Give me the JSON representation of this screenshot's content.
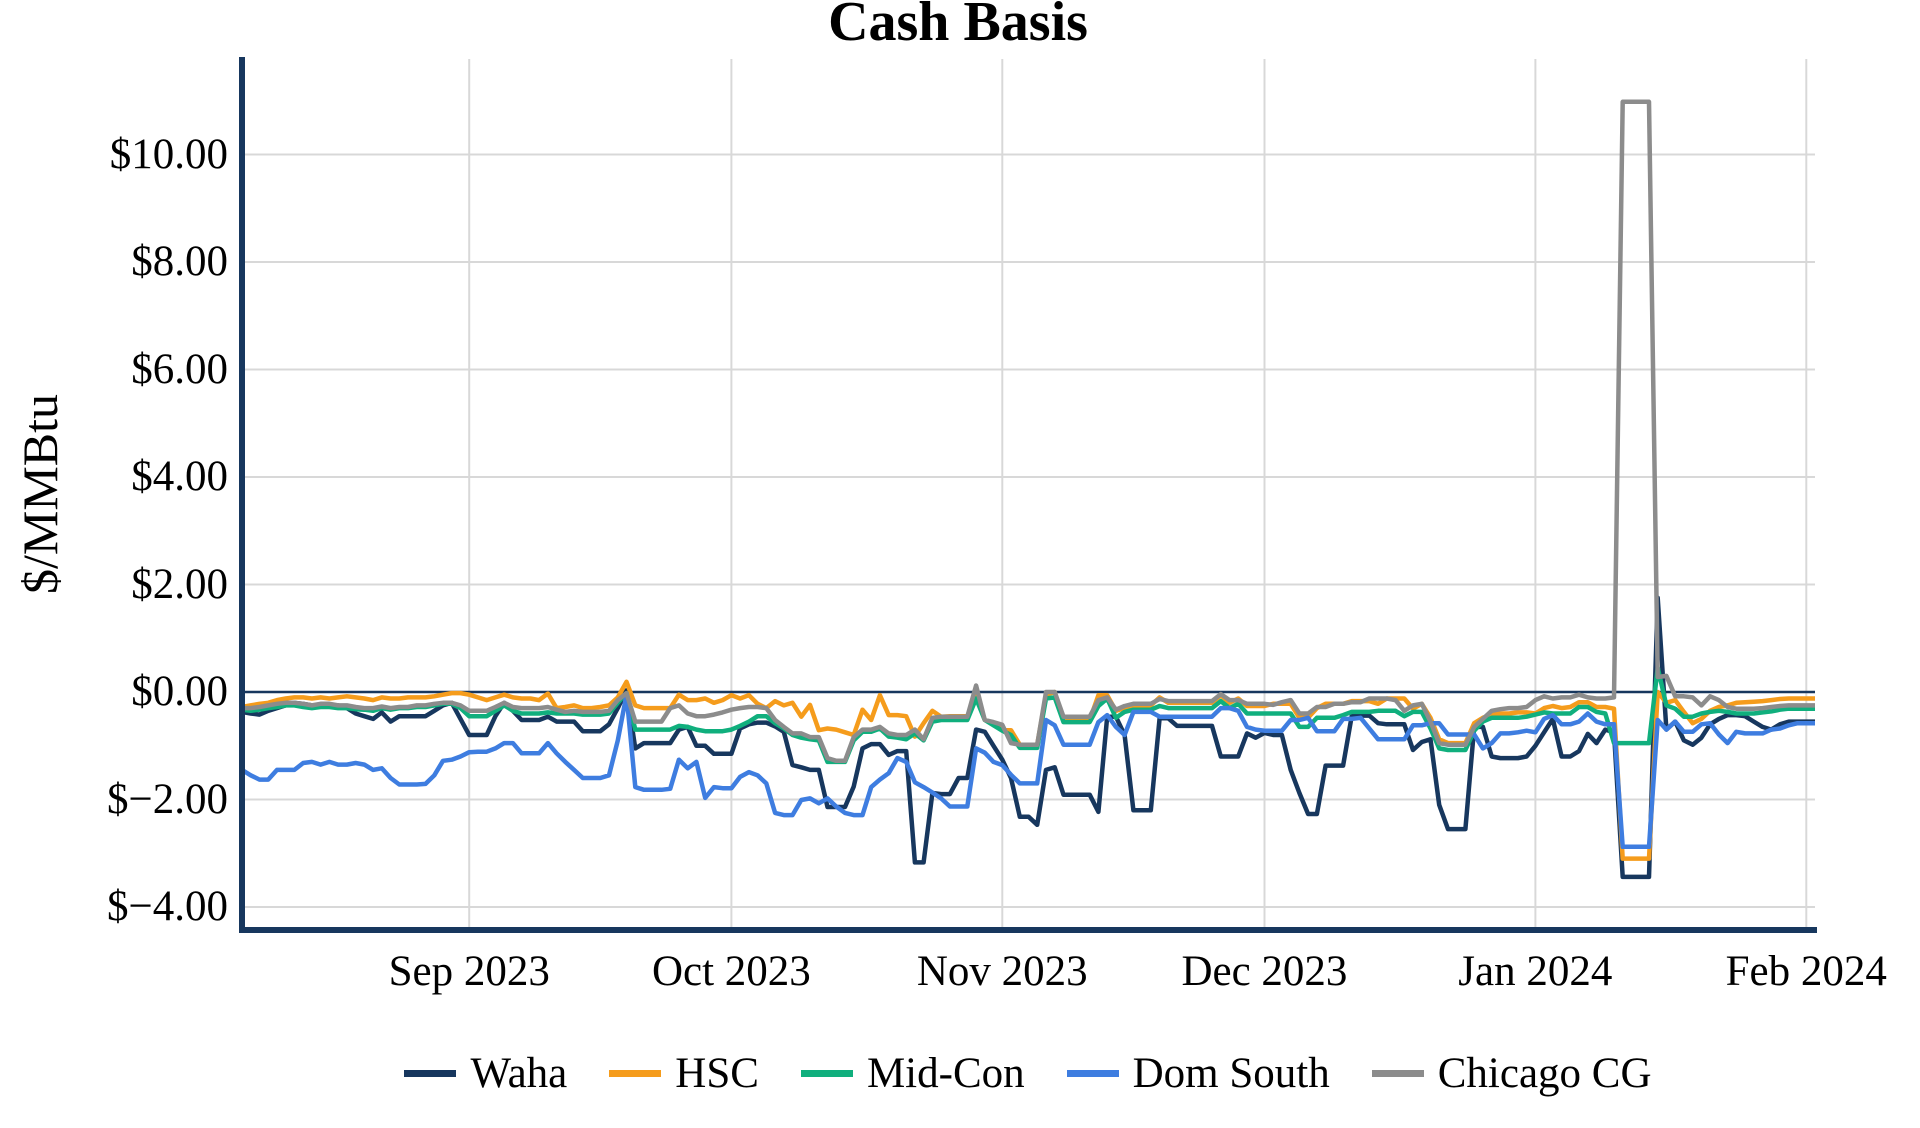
{
  "colors": {
    "background": "#FFFFFF",
    "axis_spine": "#17375E",
    "zero_line": "#17375E",
    "gridline": "#D8D8D8",
    "text": "#000000"
  },
  "chart_data": {
    "type": "line",
    "title": "Cash Basis",
    "ylabel": "$/MMBtu",
    "xlabel": "",
    "grid": true,
    "legend_position": "bottom",
    "ylim": [
      -4.43,
      11.78
    ],
    "start_date": "2023-08-06",
    "end_date": "2024-02-02",
    "points_per_series": 181,
    "y_ticks": [
      {
        "label": "$10.00",
        "value": 10
      },
      {
        "label": "$8.00",
        "value": 8
      },
      {
        "label": "$6.00",
        "value": 6
      },
      {
        "label": "$4.00",
        "value": 4
      },
      {
        "label": "$2.00",
        "value": 2
      },
      {
        "label": "$0.00",
        "value": 0
      },
      {
        "label": "$−2.00",
        "value": -2
      },
      {
        "label": "$−4.00",
        "value": -4
      }
    ],
    "x_ticks": [
      {
        "label": "Sep 2023",
        "day_index": 26
      },
      {
        "label": "Oct 2023",
        "day_index": 56
      },
      {
        "label": "Nov 2023",
        "day_index": 87
      },
      {
        "label": "Dec 2023",
        "day_index": 117
      },
      {
        "label": "Jan 2024",
        "day_index": 148
      },
      {
        "label": "Feb 2024",
        "day_index": 179
      }
    ],
    "series": [
      {
        "name": "Waha",
        "color": "#17375E",
        "values": [
          -0.37,
          -0.4,
          -0.42,
          -0.35,
          -0.3,
          -0.25,
          -0.2,
          -0.22,
          -0.25,
          -0.25,
          -0.25,
          -0.25,
          -0.3,
          -0.4,
          -0.45,
          -0.5,
          -0.38,
          -0.55,
          -0.45,
          -0.45,
          -0.45,
          -0.45,
          -0.35,
          -0.25,
          -0.2,
          -0.5,
          -0.8,
          -0.8,
          -0.8,
          -0.45,
          -0.2,
          -0.35,
          -0.52,
          -0.52,
          -0.52,
          -0.46,
          -0.55,
          -0.55,
          -0.55,
          -0.73,
          -0.73,
          -0.73,
          -0.6,
          -0.3,
          0.03,
          -1.05,
          -0.95,
          -0.95,
          -0.95,
          -0.95,
          -0.7,
          -0.65,
          -1.0,
          -1.0,
          -1.15,
          -1.15,
          -1.15,
          -0.68,
          -0.6,
          -0.57,
          -0.57,
          -0.64,
          -0.74,
          -1.36,
          -1.4,
          -1.45,
          -1.45,
          -2.14,
          -2.14,
          -2.14,
          -1.76,
          -1.05,
          -0.97,
          -0.97,
          -1.17,
          -1.1,
          -1.1,
          -3.17,
          -3.17,
          -1.88,
          -1.9,
          -1.9,
          -1.6,
          -1.6,
          -0.7,
          -0.74,
          -1.0,
          -1.26,
          -1.6,
          -2.32,
          -2.32,
          -2.47,
          -1.45,
          -1.4,
          -1.91,
          -1.91,
          -1.91,
          -1.91,
          -2.23,
          -0.46,
          -0.46,
          -0.8,
          -2.2,
          -2.2,
          -2.2,
          -0.49,
          -0.49,
          -0.63,
          -0.63,
          -0.63,
          -0.63,
          -0.63,
          -1.2,
          -1.2,
          -1.2,
          -0.77,
          -0.85,
          -0.76,
          -0.8,
          -0.8,
          -1.45,
          -1.88,
          -2.27,
          -2.27,
          -1.37,
          -1.37,
          -1.37,
          -0.44,
          -0.44,
          -0.44,
          -0.58,
          -0.6,
          -0.6,
          -0.6,
          -1.08,
          -0.93,
          -0.88,
          -2.1,
          -2.55,
          -2.55,
          -2.55,
          -0.65,
          -0.65,
          -1.2,
          -1.23,
          -1.23,
          -1.23,
          -1.2,
          -1.0,
          -0.75,
          -0.5,
          -1.2,
          -1.2,
          -1.1,
          -0.78,
          -0.95,
          -0.7,
          -0.75,
          -3.44,
          -3.44,
          -3.44,
          -3.44,
          1.75,
          -0.7,
          -0.55,
          -0.9,
          -0.98,
          -0.85,
          -0.6,
          -0.5,
          -0.43,
          -0.43,
          -0.45,
          -0.55,
          -0.65,
          -0.7,
          -0.6,
          -0.55,
          -0.55,
          -0.55,
          -0.55
        ]
      },
      {
        "name": "HSC",
        "color": "#F59C1C",
        "values": [
          -0.28,
          -0.25,
          -0.22,
          -0.2,
          -0.15,
          -0.12,
          -0.1,
          -0.1,
          -0.12,
          -0.1,
          -0.12,
          -0.1,
          -0.08,
          -0.1,
          -0.12,
          -0.15,
          -0.1,
          -0.12,
          -0.12,
          -0.1,
          -0.1,
          -0.1,
          -0.08,
          -0.05,
          -0.02,
          -0.02,
          -0.05,
          -0.1,
          -0.15,
          -0.1,
          -0.05,
          -0.1,
          -0.12,
          -0.12,
          -0.15,
          -0.03,
          -0.3,
          -0.28,
          -0.25,
          -0.3,
          -0.3,
          -0.28,
          -0.25,
          -0.1,
          0.19,
          -0.25,
          -0.3,
          -0.3,
          -0.3,
          -0.3,
          -0.05,
          -0.15,
          -0.15,
          -0.12,
          -0.2,
          -0.15,
          -0.06,
          -0.12,
          -0.06,
          -0.22,
          -0.3,
          -0.17,
          -0.25,
          -0.2,
          -0.46,
          -0.24,
          -0.71,
          -0.68,
          -0.7,
          -0.75,
          -0.8,
          -0.33,
          -0.52,
          -0.06,
          -0.43,
          -0.43,
          -0.45,
          -0.83,
          -0.58,
          -0.35,
          -0.46,
          -0.45,
          -0.45,
          -0.45,
          -0.08,
          -0.52,
          -0.58,
          -0.71,
          -0.71,
          -0.98,
          -0.98,
          -0.98,
          -0.05,
          0.0,
          -0.52,
          -0.52,
          -0.52,
          -0.52,
          -0.06,
          -0.06,
          -0.35,
          -0.3,
          -0.25,
          -0.25,
          -0.25,
          -0.1,
          -0.2,
          -0.2,
          -0.2,
          -0.2,
          -0.2,
          -0.2,
          -0.06,
          -0.2,
          -0.12,
          -0.26,
          -0.26,
          -0.26,
          -0.22,
          -0.22,
          -0.22,
          -0.48,
          -0.48,
          -0.3,
          -0.22,
          -0.22,
          -0.22,
          -0.17,
          -0.17,
          -0.17,
          -0.22,
          -0.12,
          -0.12,
          -0.12,
          -0.31,
          -0.22,
          -0.48,
          -0.88,
          -0.95,
          -0.95,
          -0.95,
          -0.58,
          -0.48,
          -0.42,
          -0.4,
          -0.4,
          -0.38,
          -0.38,
          -0.4,
          -0.3,
          -0.26,
          -0.3,
          -0.28,
          -0.19,
          -0.19,
          -0.28,
          -0.28,
          -0.31,
          -3.1,
          -3.1,
          -3.1,
          -3.1,
          0.0,
          -0.2,
          -0.15,
          -0.37,
          -0.58,
          -0.5,
          -0.35,
          -0.28,
          -0.25,
          -0.2,
          -0.19,
          -0.18,
          -0.17,
          -0.15,
          -0.13,
          -0.12,
          -0.12,
          -0.12,
          -0.12
        ]
      },
      {
        "name": "Mid-Con",
        "color": "#10AF7D",
        "values": [
          -0.33,
          -0.35,
          -0.33,
          -0.3,
          -0.28,
          -0.25,
          -0.25,
          -0.28,
          -0.3,
          -0.28,
          -0.28,
          -0.3,
          -0.3,
          -0.32,
          -0.33,
          -0.35,
          -0.3,
          -0.33,
          -0.3,
          -0.3,
          -0.28,
          -0.28,
          -0.25,
          -0.22,
          -0.22,
          -0.3,
          -0.45,
          -0.45,
          -0.45,
          -0.35,
          -0.25,
          -0.35,
          -0.4,
          -0.4,
          -0.4,
          -0.38,
          -0.4,
          -0.4,
          -0.4,
          -0.42,
          -0.42,
          -0.42,
          -0.4,
          -0.2,
          -0.02,
          -0.7,
          -0.7,
          -0.7,
          -0.7,
          -0.7,
          -0.63,
          -0.65,
          -0.7,
          -0.73,
          -0.73,
          -0.73,
          -0.7,
          -0.63,
          -0.55,
          -0.45,
          -0.45,
          -0.58,
          -0.68,
          -0.8,
          -0.85,
          -0.88,
          -0.9,
          -1.3,
          -1.3,
          -1.3,
          -0.9,
          -0.74,
          -0.74,
          -0.68,
          -0.83,
          -0.85,
          -0.88,
          -0.77,
          -0.9,
          -0.55,
          -0.52,
          -0.52,
          -0.52,
          -0.52,
          -0.12,
          -0.52,
          -0.62,
          -0.72,
          -0.8,
          -1.04,
          -1.04,
          -1.04,
          -0.12,
          -0.1,
          -0.56,
          -0.56,
          -0.56,
          -0.56,
          -0.26,
          -0.12,
          -0.48,
          -0.37,
          -0.33,
          -0.33,
          -0.33,
          -0.26,
          -0.3,
          -0.3,
          -0.3,
          -0.3,
          -0.3,
          -0.3,
          -0.17,
          -0.3,
          -0.22,
          -0.4,
          -0.4,
          -0.4,
          -0.4,
          -0.4,
          -0.4,
          -0.65,
          -0.65,
          -0.48,
          -0.48,
          -0.48,
          -0.43,
          -0.37,
          -0.37,
          -0.37,
          -0.35,
          -0.35,
          -0.35,
          -0.45,
          -0.37,
          -0.37,
          -0.68,
          -1.05,
          -1.08,
          -1.08,
          -1.08,
          -0.72,
          -0.55,
          -0.48,
          -0.48,
          -0.48,
          -0.48,
          -0.46,
          -0.42,
          -0.38,
          -0.4,
          -0.4,
          -0.4,
          -0.28,
          -0.28,
          -0.37,
          -0.4,
          -0.95,
          -0.95,
          -0.95,
          -0.95,
          -0.95,
          0.45,
          -0.25,
          -0.31,
          -0.46,
          -0.46,
          -0.4,
          -0.37,
          -0.35,
          -0.37,
          -0.4,
          -0.4,
          -0.4,
          -0.38,
          -0.36,
          -0.33,
          -0.31,
          -0.31,
          -0.31,
          -0.31
        ]
      },
      {
        "name": "Dom South",
        "color": "#3E7DE0",
        "values": [
          -1.45,
          -1.55,
          -1.63,
          -1.63,
          -1.45,
          -1.45,
          -1.45,
          -1.32,
          -1.3,
          -1.35,
          -1.3,
          -1.35,
          -1.35,
          -1.32,
          -1.35,
          -1.45,
          -1.42,
          -1.6,
          -1.72,
          -1.72,
          -1.72,
          -1.71,
          -1.55,
          -1.28,
          -1.26,
          -1.2,
          -1.12,
          -1.11,
          -1.11,
          -1.05,
          -0.95,
          -0.95,
          -1.14,
          -1.14,
          -1.14,
          -0.95,
          -1.14,
          -1.3,
          -1.45,
          -1.6,
          -1.6,
          -1.6,
          -1.55,
          -0.9,
          -0.05,
          -1.77,
          -1.82,
          -1.82,
          -1.82,
          -1.8,
          -1.26,
          -1.42,
          -1.3,
          -1.97,
          -1.77,
          -1.79,
          -1.79,
          -1.58,
          -1.49,
          -1.55,
          -1.7,
          -2.25,
          -2.29,
          -2.29,
          -2.01,
          -1.98,
          -2.07,
          -1.98,
          -2.13,
          -2.25,
          -2.29,
          -2.29,
          -1.77,
          -1.63,
          -1.51,
          -1.23,
          -1.3,
          -1.68,
          -1.77,
          -1.87,
          -1.98,
          -2.13,
          -2.13,
          -2.13,
          -1.05,
          -1.13,
          -1.3,
          -1.36,
          -1.54,
          -1.7,
          -1.7,
          -1.7,
          -0.52,
          -0.62,
          -0.98,
          -0.98,
          -0.98,
          -0.98,
          -0.56,
          -0.43,
          -0.65,
          -0.8,
          -0.37,
          -0.37,
          -0.37,
          -0.46,
          -0.46,
          -0.46,
          -0.46,
          -0.46,
          -0.46,
          -0.46,
          -0.3,
          -0.3,
          -0.35,
          -0.65,
          -0.7,
          -0.72,
          -0.72,
          -0.72,
          -0.52,
          -0.52,
          -0.48,
          -0.73,
          -0.73,
          -0.73,
          -0.5,
          -0.5,
          -0.48,
          -0.68,
          -0.88,
          -0.88,
          -0.88,
          -0.88,
          -0.62,
          -0.62,
          -0.58,
          -0.58,
          -0.79,
          -0.79,
          -0.79,
          -0.79,
          -1.05,
          -0.95,
          -0.77,
          -0.77,
          -0.75,
          -0.72,
          -0.75,
          -0.5,
          -0.43,
          -0.6,
          -0.6,
          -0.55,
          -0.4,
          -0.55,
          -0.6,
          -0.6,
          -2.88,
          -2.88,
          -2.88,
          -2.88,
          -0.52,
          -0.7,
          -0.55,
          -0.74,
          -0.74,
          -0.6,
          -0.58,
          -0.79,
          -0.95,
          -0.74,
          -0.77,
          -0.77,
          -0.77,
          -0.7,
          -0.68,
          -0.62,
          -0.58,
          -0.58,
          -0.58
        ]
      },
      {
        "name": "Chicago CG",
        "color": "#8C8C8C",
        "values": [
          -0.3,
          -0.3,
          -0.28,
          -0.25,
          -0.22,
          -0.2,
          -0.2,
          -0.22,
          -0.25,
          -0.22,
          -0.22,
          -0.25,
          -0.25,
          -0.28,
          -0.3,
          -0.3,
          -0.27,
          -0.3,
          -0.28,
          -0.28,
          -0.25,
          -0.25,
          -0.22,
          -0.2,
          -0.2,
          -0.25,
          -0.35,
          -0.35,
          -0.35,
          -0.28,
          -0.2,
          -0.28,
          -0.3,
          -0.3,
          -0.3,
          -0.28,
          -0.33,
          -0.37,
          -0.35,
          -0.37,
          -0.37,
          -0.37,
          -0.35,
          -0.15,
          -0.02,
          -0.55,
          -0.55,
          -0.55,
          -0.55,
          -0.3,
          -0.25,
          -0.4,
          -0.45,
          -0.45,
          -0.42,
          -0.38,
          -0.33,
          -0.3,
          -0.28,
          -0.28,
          -0.3,
          -0.52,
          -0.65,
          -0.77,
          -0.77,
          -0.84,
          -0.84,
          -1.23,
          -1.28,
          -1.28,
          -0.84,
          -0.7,
          -0.7,
          -0.65,
          -0.77,
          -0.8,
          -0.8,
          -0.7,
          -0.88,
          -0.48,
          -0.46,
          -0.46,
          -0.46,
          -0.46,
          0.12,
          -0.52,
          -0.56,
          -0.61,
          -0.95,
          -0.98,
          -0.98,
          -0.98,
          0.0,
          0.0,
          -0.46,
          -0.46,
          -0.46,
          -0.46,
          -0.15,
          -0.1,
          -0.33,
          -0.26,
          -0.22,
          -0.22,
          -0.22,
          -0.13,
          -0.17,
          -0.17,
          -0.17,
          -0.17,
          -0.17,
          -0.17,
          -0.04,
          -0.15,
          -0.15,
          -0.22,
          -0.22,
          -0.22,
          -0.24,
          -0.19,
          -0.15,
          -0.4,
          -0.4,
          -0.28,
          -0.28,
          -0.22,
          -0.22,
          -0.19,
          -0.19,
          -0.12,
          -0.12,
          -0.12,
          -0.15,
          -0.35,
          -0.25,
          -0.22,
          -0.55,
          -0.95,
          -0.98,
          -0.98,
          -0.98,
          -0.65,
          -0.5,
          -0.35,
          -0.32,
          -0.3,
          -0.3,
          -0.28,
          -0.15,
          -0.08,
          -0.12,
          -0.1,
          -0.1,
          -0.05,
          -0.1,
          -0.12,
          -0.12,
          -0.1,
          10.98,
          10.98,
          10.98,
          10.98,
          0.28,
          0.3,
          -0.08,
          -0.08,
          -0.1,
          -0.25,
          -0.08,
          -0.15,
          -0.28,
          -0.31,
          -0.31,
          -0.31,
          -0.3,
          -0.28,
          -0.26,
          -0.25,
          -0.25,
          -0.25,
          -0.25
        ]
      }
    ]
  }
}
